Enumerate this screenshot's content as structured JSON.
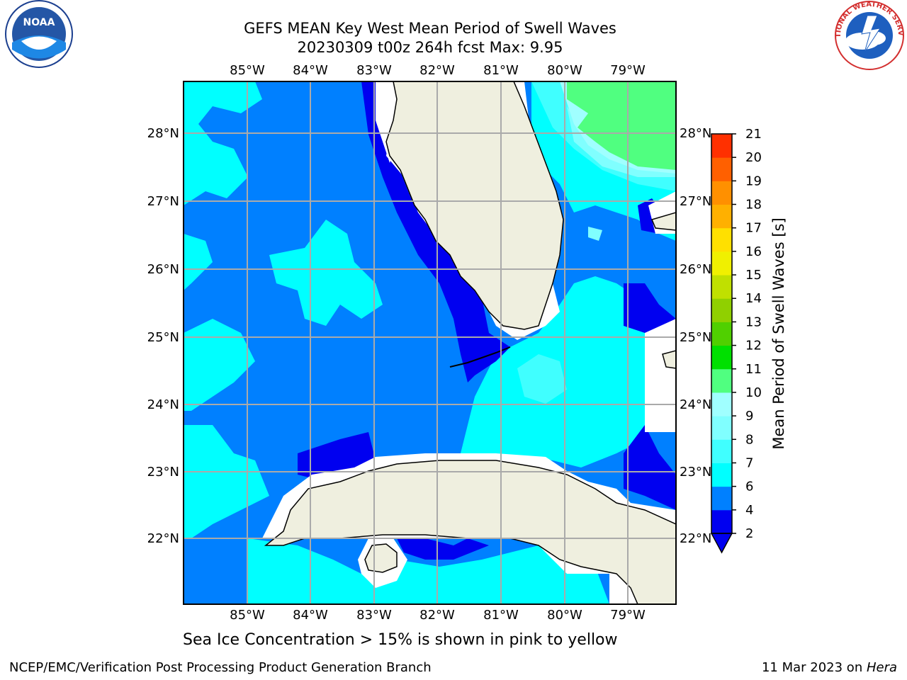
{
  "header": {
    "title_line1": "GEFS MEAN Key West Mean Period of Swell Waves",
    "title_line2": "20230309 t00z 264h fcst   Max: 9.95"
  },
  "map": {
    "lon_labels": [
      "85°W",
      "84°W",
      "83°W",
      "82°W",
      "81°W",
      "80°W",
      "79°W"
    ],
    "lat_labels": [
      "28°N",
      "27°N",
      "26°N",
      "25°N",
      "24°N",
      "23°N",
      "22°N"
    ],
    "lon_values": [
      -85,
      -84,
      -83,
      -82,
      -81,
      -80,
      -79
    ],
    "lat_values": [
      28,
      27,
      26,
      25,
      24,
      23,
      22
    ],
    "grid": true
  },
  "colorbar": {
    "label": "Mean Period of Swell Waves [s]",
    "ticks": [
      "2",
      "4",
      "6",
      "7",
      "8",
      "9",
      "10",
      "11",
      "12",
      "13",
      "14",
      "15",
      "16",
      "17",
      "18",
      "19",
      "20",
      "21"
    ],
    "colors": [
      "#0000f0",
      "#0080ff",
      "#00ffff",
      "#40ffff",
      "#80ffff",
      "#a0ffff",
      "#50ff80",
      "#00e000",
      "#50d000",
      "#90d000",
      "#c0e000",
      "#f0f000",
      "#ffe000",
      "#ffb000",
      "#ff9000",
      "#ff6000",
      "#ff3000",
      "#ff0000"
    ]
  },
  "subcaption": "Sea Ice Concentration > 15% is shown in pink to yellow",
  "footer": {
    "left": "NCEP/EMC/Verification Post Processing Product Generation Branch",
    "right_date": "11 Mar 2023 on ",
    "right_host": "Hera"
  },
  "logos": {
    "left_text": "NOAA",
    "right_text": "NATIONAL WEATHER SERVICE"
  }
}
